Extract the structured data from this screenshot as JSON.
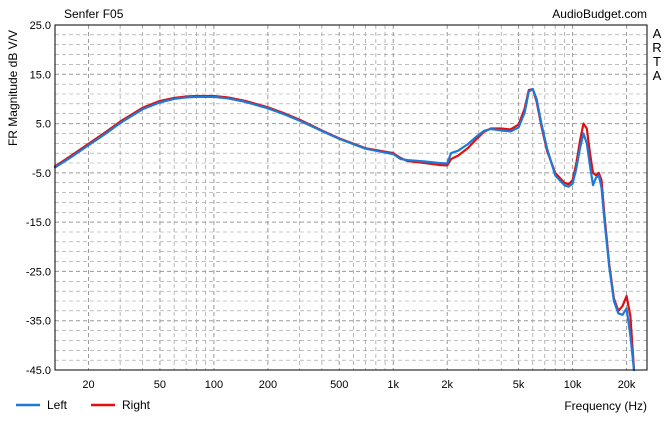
{
  "chart_data": {
    "type": "line",
    "title": "Senfer F05",
    "source_label": "AudioBudget.com",
    "side_label": [
      "A",
      "R",
      "T",
      "A"
    ],
    "xlabel": "Frequency (Hz)",
    "ylabel": "FR Magnitude dB V/V",
    "x_scale": "log",
    "xlim": [
      13,
      26000
    ],
    "ylim": [
      -45,
      25
    ],
    "y_ticks": [
      25.0,
      15.0,
      5.0,
      -5.0,
      -15.0,
      -25.0,
      -35.0,
      -45.0
    ],
    "y_tick_labels": [
      "25.0",
      "15.0",
      "5.0",
      "-5.0",
      "-15.0",
      "-25.0",
      "-35.0",
      "-45.0"
    ],
    "x_ticks": [
      20,
      50,
      100,
      200,
      500,
      1000,
      2000,
      5000,
      10000,
      20000
    ],
    "x_tick_labels": [
      "20",
      "50",
      "100",
      "200",
      "500",
      "1k",
      "2k",
      "5k",
      "10k",
      "20k"
    ],
    "grid": true,
    "legend_position": "bottom-left",
    "colors": {
      "left": "#1f78d6",
      "right": "#e01010",
      "grid": "#9a9a9a"
    },
    "series": [
      {
        "name": "Left",
        "x": [
          13,
          16,
          20,
          25,
          30,
          40,
          50,
          60,
          70,
          80,
          100,
          120,
          150,
          200,
          250,
          300,
          400,
          500,
          700,
          1000,
          1100,
          1200,
          1500,
          1800,
          2000,
          2100,
          2300,
          2600,
          2900,
          3200,
          3500,
          4000,
          4500,
          5000,
          5400,
          5700,
          6000,
          6300,
          6700,
          7200,
          8000,
          9000,
          9500,
          10000,
          10500,
          11000,
          11500,
          12000,
          12500,
          13000,
          13500,
          14000,
          14500,
          15000,
          16000,
          17000,
          18000,
          19000,
          20000,
          21000,
          22000
        ],
        "y": [
          -3.9,
          -1.8,
          0.6,
          3.0,
          5.1,
          7.9,
          9.3,
          10.0,
          10.3,
          10.4,
          10.4,
          10.1,
          9.4,
          8.1,
          6.8,
          5.6,
          3.5,
          1.9,
          -0.1,
          -1.2,
          -2.2,
          -2.4,
          -2.7,
          -3.0,
          -3.1,
          -1.0,
          -0.5,
          0.8,
          2.3,
          3.5,
          3.9,
          3.6,
          3.4,
          4.2,
          7.2,
          11.5,
          12.0,
          10.0,
          5.0,
          0.0,
          -5.5,
          -7.5,
          -7.8,
          -7.2,
          -4.0,
          0.0,
          3.0,
          1.0,
          -3.5,
          -7.5,
          -6.0,
          -5.5,
          -8.0,
          -14.0,
          -24.0,
          -31.0,
          -33.5,
          -33.8,
          -32.5,
          -38.0,
          -45.0
        ]
      },
      {
        "name": "Right",
        "x": [
          13,
          16,
          20,
          25,
          30,
          40,
          50,
          60,
          70,
          80,
          100,
          120,
          150,
          200,
          250,
          300,
          400,
          500,
          700,
          1000,
          1100,
          1200,
          1500,
          1800,
          2000,
          2100,
          2300,
          2600,
          2900,
          3200,
          3500,
          4000,
          4500,
          5000,
          5400,
          5700,
          6000,
          6300,
          6700,
          7200,
          8000,
          9000,
          9500,
          10000,
          10500,
          11000,
          11500,
          12000,
          12500,
          13000,
          13500,
          14000,
          14500,
          15000,
          16000,
          17000,
          18000,
          19000,
          20000,
          21000,
          22000
        ],
        "y": [
          -3.7,
          -1.5,
          0.9,
          3.3,
          5.4,
          8.2,
          9.6,
          10.2,
          10.5,
          10.6,
          10.6,
          10.3,
          9.6,
          8.3,
          7.0,
          5.8,
          3.6,
          2.0,
          0.0,
          -1.0,
          -2.0,
          -2.6,
          -3.0,
          -3.4,
          -3.5,
          -2.2,
          -1.5,
          0.0,
          1.8,
          3.3,
          4.0,
          4.0,
          3.8,
          4.8,
          8.0,
          11.8,
          12.0,
          9.5,
          4.5,
          -0.5,
          -5.0,
          -7.0,
          -7.3,
          -6.5,
          -3.0,
          1.5,
          5.0,
          4.0,
          -1.0,
          -5.0,
          -5.5,
          -5.0,
          -6.5,
          -13.0,
          -23.5,
          -30.5,
          -33.0,
          -32.0,
          -30.0,
          -34.0,
          -45.0
        ]
      }
    ]
  }
}
